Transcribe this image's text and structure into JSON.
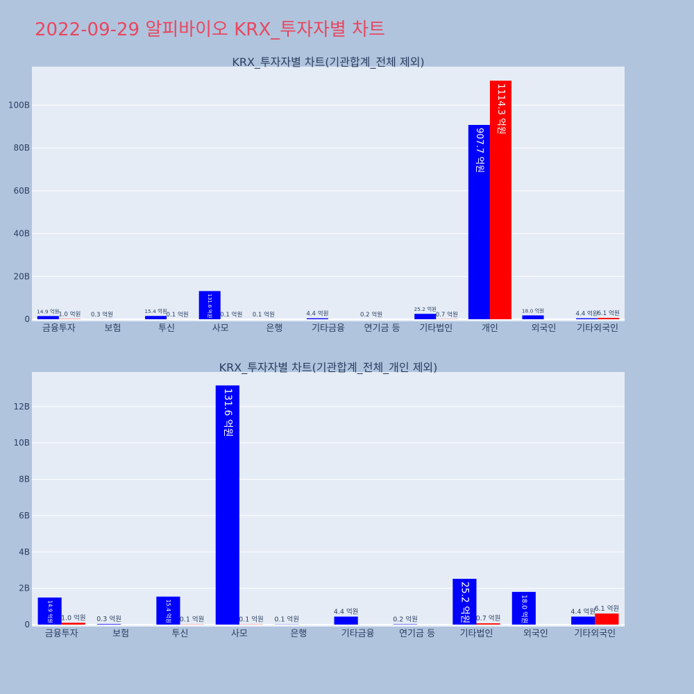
{
  "title": "2022-09-29 알피바이오 KRX_투자자별 차트",
  "colors": {
    "buy": "#0000ff",
    "sell": "#ff0000",
    "title": "#e8475f",
    "plot_bg": "#e5ecf6",
    "page_bg": "#b0c4de"
  },
  "chart_data": [
    {
      "type": "bar",
      "title": "KRX_투자자별 차트(기관합계_전체 제외)",
      "categories": [
        "금융투자",
        "보험",
        "투신",
        "사모",
        "은행",
        "기타금융",
        "연기금 등",
        "기타법인",
        "개인",
        "외국인",
        "기타외국인"
      ],
      "series": [
        {
          "color": "#0000ff",
          "values": [
            1.49,
            0.03,
            1.54,
            13.16,
            0.01,
            0.44,
            0.02,
            2.52,
            90.77,
            1.8,
            0.44
          ]
        },
        {
          "color": "#ff0000",
          "values": [
            0.1,
            0,
            0.01,
            0.01,
            0,
            0,
            0,
            0.07,
            111.43,
            0,
            0.61
          ]
        }
      ],
      "labels": [
        [
          "14.9 억원",
          "0.3 억원",
          "15.4 억원",
          "131.6 억원",
          "0.1 억원",
          "4.4 억원",
          "0.2 억원",
          "25.2 억원",
          "907.7 억원",
          "18.0 억원",
          "4.4 억원"
        ],
        [
          "1.0 억원",
          "",
          "0.1 억원",
          "0.1 억원",
          "",
          "",
          "",
          "0.7 억원",
          "1114.3 억원",
          "",
          "6.1 억원"
        ]
      ],
      "ylim": [
        0,
        118
      ],
      "yticks": [
        0,
        20,
        40,
        60,
        80,
        100
      ],
      "ytick_labels": [
        "0",
        "20B",
        "40B",
        "60B",
        "80B",
        "100B"
      ],
      "grid": true
    },
    {
      "type": "bar",
      "title": "KRX_투자자별 차트(기관합계_전체_개인 제외)",
      "categories": [
        "금융투자",
        "보험",
        "투신",
        "사모",
        "은행",
        "기타금융",
        "연기금 등",
        "기타법인",
        "외국인",
        "기타외국인"
      ],
      "series": [
        {
          "color": "#0000ff",
          "values": [
            1.49,
            0.03,
            1.54,
            13.16,
            0.01,
            0.44,
            0.02,
            2.52,
            1.8,
            0.44
          ]
        },
        {
          "color": "#ff0000",
          "values": [
            0.1,
            0,
            0.01,
            0.01,
            0,
            0,
            0,
            0.07,
            0,
            0.61
          ]
        }
      ],
      "labels": [
        [
          "14.9 억원",
          "0.3 억원",
          "15.4 억원",
          "131.6 억원",
          "0.1 억원",
          "4.4 억원",
          "0.2 억원",
          "25.2 억원",
          "18.0 억원",
          "4.4 억원"
        ],
        [
          "1.0 억원",
          "",
          "0.1 억원",
          "0.1 억원",
          "",
          "",
          "",
          "0.7 억원",
          "",
          "6.1 억원"
        ]
      ],
      "ylim": [
        0,
        13.9
      ],
      "yticks": [
        0,
        2,
        4,
        6,
        8,
        10,
        12
      ],
      "ytick_labels": [
        "0",
        "2B",
        "4B",
        "6B",
        "8B",
        "10B",
        "12B"
      ],
      "grid": true
    }
  ]
}
